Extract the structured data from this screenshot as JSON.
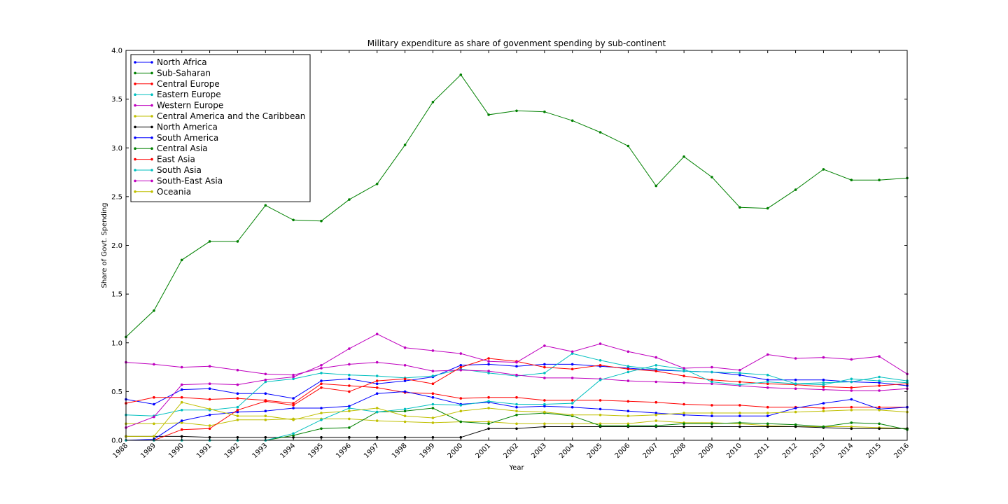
{
  "chart_data": {
    "type": "line",
    "title": "Military expenditure as share of govenment spending by sub-continent",
    "xlabel": "Year",
    "ylabel": "Share of Govt. Spending",
    "xlim": [
      1988,
      2016
    ],
    "ylim": [
      0,
      4.0
    ],
    "x": [
      1988,
      1989,
      1990,
      1991,
      1992,
      1993,
      1994,
      1995,
      1996,
      1997,
      1998,
      1999,
      2000,
      2001,
      2002,
      2003,
      2004,
      2005,
      2006,
      2007,
      2008,
      2009,
      2010,
      2011,
      2012,
      2013,
      2014,
      2015,
      2016
    ],
    "y_ticks": [
      "0.0",
      "0.5",
      "1.0",
      "1.5",
      "2.0",
      "2.5",
      "3.0",
      "3.5",
      "4.0"
    ],
    "y_tick_values": [
      0,
      0.5,
      1.0,
      1.5,
      2.0,
      2.5,
      3.0,
      3.5,
      4.0
    ],
    "grid": false,
    "legend_position": "top-left",
    "series": [
      {
        "name": "North Africa",
        "color": "#0000ff",
        "values": [
          0.42,
          0.37,
          0.52,
          0.53,
          0.48,
          0.48,
          0.43,
          0.61,
          0.63,
          0.58,
          0.61,
          0.65,
          0.77,
          0.78,
          0.76,
          0.78,
          0.78,
          0.76,
          0.74,
          0.72,
          0.71,
          0.7,
          0.67,
          0.62,
          0.62,
          0.62,
          0.6,
          0.59,
          0.56
        ]
      },
      {
        "name": "Sub-Saharan",
        "color": "#008000",
        "values": [
          1.06,
          1.33,
          1.85,
          2.04,
          2.04,
          2.41,
          2.26,
          2.25,
          2.47,
          2.63,
          3.03,
          3.47,
          3.75,
          3.34,
          3.38,
          3.37,
          3.28,
          3.16,
          3.02,
          2.61,
          2.91,
          2.7,
          2.39,
          2.38,
          2.57,
          2.78,
          2.67,
          2.67,
          2.69
        ]
      },
      {
        "name": "Central Europe",
        "color": "#ff0000",
        "values": [
          0.38,
          0.44,
          0.44,
          0.42,
          0.43,
          0.41,
          0.38,
          0.58,
          0.56,
          0.54,
          0.49,
          0.48,
          0.43,
          0.44,
          0.44,
          0.41,
          0.41,
          0.41,
          0.4,
          0.39,
          0.37,
          0.36,
          0.36,
          0.34,
          0.34,
          0.33,
          0.34,
          0.34,
          0.34
        ]
      },
      {
        "name": "Eastern Europe",
        "color": "#00bfbf",
        "values": [
          0.26,
          0.25,
          0.31,
          0.31,
          0.34,
          0.6,
          0.63,
          0.69,
          0.67,
          0.66,
          0.64,
          0.66,
          0.73,
          0.69,
          0.66,
          0.69,
          0.89,
          0.82,
          0.76,
          0.73,
          0.71,
          0.7,
          0.69,
          0.67,
          0.58,
          0.59,
          0.6,
          0.65,
          0.61
        ]
      },
      {
        "name": "Western Europe",
        "color": "#bf00bf",
        "values": [
          0.8,
          0.78,
          0.75,
          0.76,
          0.72,
          0.68,
          0.67,
          0.74,
          0.78,
          0.8,
          0.77,
          0.71,
          0.72,
          0.71,
          0.67,
          0.64,
          0.64,
          0.63,
          0.61,
          0.6,
          0.59,
          0.58,
          0.56,
          0.54,
          0.53,
          0.52,
          0.51,
          0.51,
          0.53
        ]
      },
      {
        "name": "Central America and the Caribbean",
        "color": "#bfbf00",
        "values": [
          0.17,
          0.17,
          0.18,
          0.15,
          0.21,
          0.21,
          0.22,
          0.22,
          0.22,
          0.2,
          0.19,
          0.18,
          0.19,
          0.19,
          0.17,
          0.17,
          0.17,
          0.17,
          0.17,
          0.2,
          0.18,
          0.18,
          0.17,
          0.15,
          0.14,
          0.14,
          0.14,
          0.13,
          0.12
        ]
      },
      {
        "name": "North America",
        "color": "#000000",
        "values": [
          0.04,
          0.04,
          0.04,
          0.03,
          0.03,
          0.03,
          0.03,
          0.03,
          0.03,
          0.03,
          0.03,
          0.03,
          0.03,
          0.12,
          0.12,
          0.14,
          0.14,
          0.14,
          0.14,
          0.14,
          0.14,
          0.14,
          0.14,
          0.14,
          0.14,
          0.13,
          0.12,
          0.12,
          0.12
        ]
      },
      {
        "name": "South America",
        "color": "#0000ff",
        "values": [
          0.0,
          0.01,
          0.2,
          0.26,
          0.29,
          0.3,
          0.33,
          0.33,
          0.35,
          0.48,
          0.5,
          0.44,
          0.37,
          0.39,
          0.34,
          0.35,
          0.34,
          0.32,
          0.3,
          0.28,
          0.26,
          0.25,
          0.25,
          0.25,
          0.33,
          0.38,
          0.42,
          0.32,
          0.34
        ]
      },
      {
        "name": "Central Asia",
        "color": "#008000",
        "values": [
          0.0,
          0.0,
          0.0,
          0.0,
          0.0,
          0.0,
          0.05,
          0.12,
          0.13,
          0.29,
          0.3,
          0.33,
          0.19,
          0.17,
          0.26,
          0.28,
          0.25,
          0.15,
          0.15,
          0.15,
          0.17,
          0.17,
          0.18,
          0.17,
          0.16,
          0.14,
          0.18,
          0.17,
          0.11
        ]
      },
      {
        "name": "East Asia",
        "color": "#ff0000",
        "values": [
          0.0,
          0.0,
          0.11,
          0.12,
          0.31,
          0.4,
          0.36,
          0.54,
          0.5,
          0.61,
          0.63,
          0.58,
          0.75,
          0.84,
          0.81,
          0.75,
          0.73,
          0.77,
          0.73,
          0.71,
          0.66,
          0.62,
          0.6,
          0.58,
          0.57,
          0.55,
          0.54,
          0.56,
          0.58
        ]
      },
      {
        "name": "South Asia",
        "color": "#00bfbf",
        "values": [
          0.0,
          0.0,
          0.0,
          0.0,
          0.0,
          0.0,
          0.07,
          0.21,
          0.33,
          0.29,
          0.32,
          0.37,
          0.36,
          0.4,
          0.37,
          0.37,
          0.38,
          0.62,
          0.7,
          0.77,
          0.73,
          0.6,
          0.57,
          0.6,
          0.58,
          0.57,
          0.63,
          0.61,
          0.59
        ]
      },
      {
        "name": "South-East Asia",
        "color": "#bf00bf",
        "values": [
          0.13,
          0.24,
          0.57,
          0.58,
          0.57,
          0.62,
          0.65,
          0.77,
          0.94,
          1.09,
          0.95,
          0.92,
          0.89,
          0.81,
          0.8,
          0.97,
          0.91,
          0.99,
          0.91,
          0.85,
          0.74,
          0.75,
          0.72,
          0.88,
          0.84,
          0.85,
          0.83,
          0.86,
          0.68
        ]
      },
      {
        "name": "Oceania",
        "color": "#bfbf00",
        "values": [
          0.04,
          0.04,
          0.39,
          0.32,
          0.25,
          0.25,
          0.21,
          0.28,
          0.3,
          0.33,
          0.25,
          0.23,
          0.3,
          0.33,
          0.3,
          0.29,
          0.26,
          0.26,
          0.25,
          0.26,
          0.28,
          0.28,
          0.28,
          0.28,
          0.29,
          0.3,
          0.31,
          0.31,
          0.29
        ]
      }
    ]
  }
}
